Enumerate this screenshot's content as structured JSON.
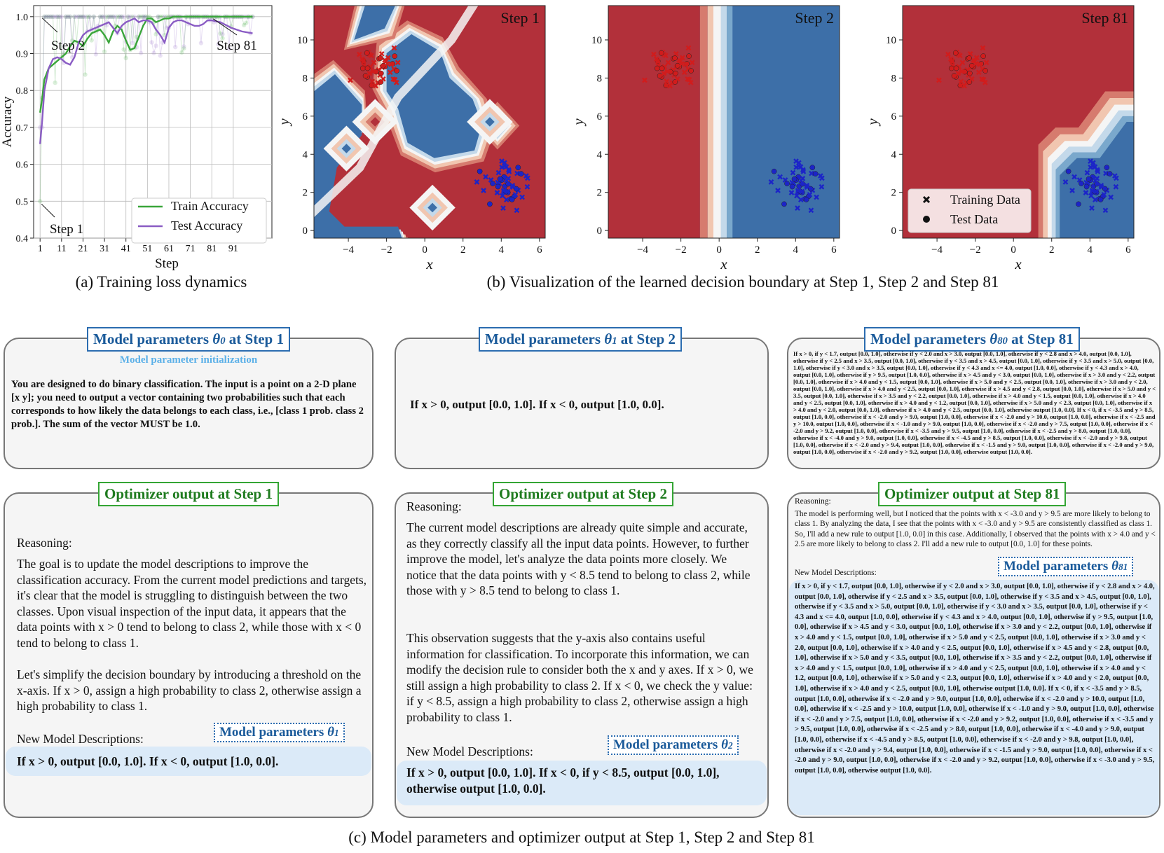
{
  "chart_data": [
    {
      "type": "line",
      "xlabel": "Step",
      "ylabel": "Accuracy",
      "xticks": [
        "1",
        "11",
        "21",
        "31",
        "41",
        "51",
        "61",
        "71",
        "81",
        "91"
      ],
      "yticks": [
        "0.4",
        "0.5",
        "0.6",
        "0.7",
        "0.8",
        "0.9",
        "1.0"
      ],
      "xlim": [
        -2,
        109
      ],
      "ylim": [
        0.4,
        1.03
      ],
      "grid": true,
      "legend_position": "bottom-right",
      "series": [
        {
          "name": "Train Accuracy",
          "color": "#3aa63a",
          "x": [
            1,
            2,
            3,
            5,
            7,
            9,
            11,
            13,
            15,
            17,
            19,
            21,
            23,
            25,
            27,
            29,
            31,
            33,
            35,
            37,
            39,
            41,
            43,
            45,
            47,
            49,
            51,
            53,
            55,
            57,
            59,
            61,
            63,
            65,
            67,
            69,
            71,
            73,
            75,
            77,
            79,
            81,
            85,
            90,
            95,
            100
          ],
          "y": [
            0.74,
            0.78,
            0.83,
            0.86,
            0.87,
            0.88,
            0.89,
            0.9,
            0.92,
            0.935,
            0.93,
            0.92,
            0.94,
            0.955,
            0.96,
            0.965,
            0.95,
            0.93,
            0.96,
            0.975,
            0.965,
            0.935,
            0.91,
            0.915,
            0.945,
            0.975,
            0.995,
            0.995,
            0.985,
            0.99,
            0.995,
            0.995,
            1.0,
            1.0,
            1.0,
            1.0,
            1.0,
            1.0,
            1.0,
            1.0,
            1.0,
            1.0,
            1.0,
            1.0,
            1.0,
            1.0
          ]
        },
        {
          "name": "Test Accuracy",
          "color": "#8a5cc4",
          "x": [
            1,
            2,
            3,
            5,
            7,
            9,
            11,
            13,
            15,
            17,
            19,
            21,
            23,
            25,
            27,
            29,
            31,
            33,
            35,
            37,
            39,
            41,
            43,
            45,
            47,
            49,
            51,
            53,
            55,
            57,
            59,
            61,
            63,
            65,
            67,
            69,
            71,
            73,
            75,
            77,
            79,
            81,
            85,
            90,
            95,
            100
          ],
          "y": [
            0.655,
            0.72,
            0.8,
            0.86,
            0.885,
            0.89,
            0.885,
            0.875,
            0.87,
            0.89,
            0.93,
            0.95,
            0.96,
            0.965,
            0.97,
            0.975,
            0.98,
            0.985,
            0.97,
            0.955,
            0.975,
            0.985,
            0.99,
            0.995,
            0.985,
            0.99,
            0.99,
            0.985,
            0.965,
            0.95,
            0.93,
            0.97,
            0.985,
            0.99,
            0.99,
            0.985,
            0.98,
            0.975,
            0.975,
            0.98,
            0.99,
            0.99,
            0.985,
            0.97,
            0.96,
            0.955
          ]
        }
      ],
      "annotations": [
        "Step 1",
        "Step 2",
        "Step 81"
      ]
    },
    {
      "type": "scatter",
      "title": "Step 1",
      "xlabel": "x",
      "ylabel": "y",
      "xlim": [
        -5.8,
        6.3
      ],
      "ylim": [
        -0.4,
        11.8
      ],
      "xticks": [
        "−4",
        "−2",
        "0",
        "2",
        "4",
        "6"
      ],
      "yticks": [
        "0",
        "2",
        "4",
        "6",
        "8",
        "10"
      ],
      "boundary": "grid-like patchwork of red and blue regions with white transition bands"
    },
    {
      "type": "scatter",
      "title": "Step 2",
      "xlabel": "x",
      "ylabel": "y",
      "xlim": [
        -5.8,
        6.3
      ],
      "ylim": [
        -0.4,
        11.8
      ],
      "xticks": [
        "−4",
        "−2",
        "0",
        "2",
        "4",
        "6"
      ],
      "yticks": [
        "0",
        "2",
        "4",
        "6",
        "8",
        "10"
      ],
      "boundary": "vertical split at x = 0: red for x < 0, blue for x > 0"
    },
    {
      "type": "scatter",
      "title": "Step 81",
      "xlabel": "x",
      "ylabel": "y",
      "xlim": [
        -5.8,
        6.3
      ],
      "ylim": [
        -0.4,
        11.8
      ],
      "xticks": [
        "−4",
        "−2",
        "0",
        "2",
        "4",
        "6"
      ],
      "yticks": [
        "0",
        "2",
        "4",
        "6",
        "8",
        "10"
      ],
      "legend": [
        "Training Data",
        "Test Data"
      ],
      "legend_position": "bottom-left",
      "boundary": "red everywhere except a blue region in the lower right bounded by a staircase near y ≈ 5–8",
      "clusters": [
        {
          "label": "class 1",
          "color": "#d11c1c",
          "center": [
            -2.5,
            8.7
          ],
          "spread": [
            0.9,
            0.9
          ]
        },
        {
          "label": "class 2",
          "color": "#1c24c8",
          "center": [
            4.2,
            2.3
          ],
          "spread": [
            0.9,
            0.9
          ]
        }
      ]
    }
  ],
  "captions": {
    "a": "(a) Training loss dynamics",
    "b": "(b) Visualization of the learned decision boundary at Step 1, Step 2 and Step 81",
    "c": "(c) Model parameters and optimizer output at Step 1, Step 2 and Step 81"
  },
  "boxes": {
    "param1": {
      "title_main": "Model parameters ",
      "title_theta": "θ",
      "title_sub": "0",
      "title_end": " at Step 1",
      "subtitle": "Model parameter initialization",
      "text": "You are designed to do binary classification. The input is a point on a 2-D plane [x y]; you need to output a vector containing two probabilities such that each corresponds to how likely the data belongs to each class, i.e., [class 1 prob. class 2 prob.]. The sum of the vector MUST be 1.0."
    },
    "param2": {
      "title_main": "Model parameters ",
      "title_theta": "θ",
      "title_sub": "1",
      "title_end": " at Step 2",
      "text": "If x > 0, output [0.0, 1.0]. If x < 0, output [1.0, 0.0]."
    },
    "param81": {
      "title_main": "Model parameters ",
      "title_theta": "θ",
      "title_sub": "80",
      "title_end": " at Step 81",
      "text": "If x > 0, if y < 1.7, output [0.0, 1.0], otherwise if y < 2.0 and x > 3.0, output [0.0, 1.0], otherwise if y < 2.8 and x > 4.0, output [0.0, 1.0], otherwise if y < 2.5 and x > 3.5, output [0.0, 1.0], otherwise if y < 3.5 and x > 4.5, output [0.0, 1.0], otherwise if y < 3.5 and x > 5.0, output [0.0, 1.0], otherwise if y < 3.0 and x > 3.5, output [0.0, 1.0], otherwise if y < 4.3 and x <= 4.0, output [1.0, 0.0], otherwise if y < 4.3 and x > 4.0, output [0.0, 1.0], otherwise if y > 9.5, output [1.0, 0.0], otherwise if x > 4.5 and y < 3.0, output [0.0, 1.0], otherwise if x > 3.0 and y < 2.2, output [0.0, 1.0], otherwise if x > 4.0 and y < 1.5, output [0.0, 1.0], otherwise if x > 5.0 and y < 2.5, output [0.0, 1.0], otherwise if x > 3.0 and y < 2.0, output [0.0, 1.0], otherwise if x > 4.0 and y < 2.5, output [0.0, 1.0], otherwise if x > 4.5 and y < 2.8, output [0.0, 1.0], otherwise if x > 5.0 and y < 3.5, output [0.0, 1.0], otherwise if x > 3.5 and y < 2.2, output [0.0, 1.0], otherwise if x > 4.0 and y < 1.5, output [0.0, 1.0], otherwise if x > 4.0 and y < 2.5, output [0.0, 1.0], otherwise if x > 4.0 and y < 1.2, output [0.0, 1.0], otherwise if x > 5.0 and y < 2.3, output [0.0, 1.0], otherwise if x > 4.0 and y < 2.0, output [0.0, 1.0], otherwise if x > 4.0 and y < 2.5, output [0.0, 1.0], otherwise output [1.0, 0.0]. If x < 0, if x < -3.5 and y > 8.5, output [1.0, 0.0], otherwise if x < -2.0 and y > 9.0, output [1.0, 0.0], otherwise if x < -2.0 and y > 10.0, output [1.0, 0.0], otherwise if x < -2.5 and y > 10.0, output [1.0, 0.0], otherwise if x < -1.0 and y > 9.0, output [1.0, 0.0], otherwise if x < -2.0 and y > 7.5, output [1.0, 0.0], otherwise if x < -2.0 and y > 9.2, output [1.0, 0.0], otherwise if x < -3.5 and y > 9.5, output [1.0, 0.0], otherwise if x < -2.5 and y > 8.0, output [1.0, 0.0], otherwise if x < -4.0 and y > 9.0, output [1.0, 0.0], otherwise if x < -4.5 and y > 8.5, output [1.0, 0.0], otherwise if x < -2.0 and y > 9.8, output [1.0, 0.0], otherwise if x < -2.0 and y > 9.4, output [1.0, 0.0], otherwise if x < -1.5 and y > 9.0, output [1.0, 0.0], otherwise if x < -2.0 and y > 9.0, output [1.0, 0.0], otherwise if x < -2.0 and y > 9.2, output [1.0, 0.0], otherwise output [1.0, 0.0]."
    },
    "opt1": {
      "title": "Optimizer output at Step 1",
      "reasoning_label": "Reasoning:",
      "para1": "The goal is to update the model descriptions to improve the classification accuracy. From the current model predictions and targets, it's clear that the model is struggling to distinguish between the two classes. Upon visual inspection of the input data, it appears that the data points with x > 0 tend to belong to class 2, while those with x < 0 tend to belong to class 1.",
      "para2": "Let's simplify the decision boundary by introducing a threshold on the x-axis. If x > 0, assign a high probability to class 2, otherwise assign a high probability to class 1.",
      "new_label": "New Model Descriptions:",
      "tag_main": "Model parameters ",
      "tag_theta": "θ",
      "tag_sub": "1",
      "new_text": "If x > 0, output [0.0, 1.0]. If x < 0, output [1.0, 0.0]."
    },
    "opt2": {
      "title": "Optimizer output at Step 2",
      "reasoning_label": "Reasoning:",
      "para1": "The current model descriptions are already quite simple and accurate, as they correctly classify all the input data points. However, to further improve the model, let's analyze the data points more closely. We notice that the data points with y < 8.5 tend to belong to class 2, while those with y > 8.5 tend to belong to class 1.",
      "para2": "This observation suggests that the y-axis also contains useful information for classification. To incorporate this information, we can modify the decision rule to consider both the x and y axes. If x > 0, we still assign a high probability to class 2. If x < 0, we check the y value: if y < 8.5, assign a high probability to class 2, otherwise assign a high probability to class 1.",
      "new_label": "New Model Descriptions:",
      "tag_main": "Model parameters ",
      "tag_theta": "θ",
      "tag_sub": "2",
      "new_text": "If x > 0, output [0.0, 1.0]. If x < 0, if y < 8.5, output [0.0, 1.0], otherwise output [1.0, 0.0]."
    },
    "opt81": {
      "title": "Optimizer output at Step 81",
      "reasoning_label": "Reasoning:",
      "para1": "The model is performing well, but I noticed that the points with x < -3.0 and y > 9.5 are more likely to belong to class 1. By analyzing the data, I see that the points with x < -3.0 and y > 9.5 are consistently classified as class 1. So, I'll add a new rule to output [1.0, 0.0] in this case. Additionally, I observed that the points with x > 4.0 and y < 2.5 are more likely to belong to class 2. I'll add a new rule to output [0.0, 1.0] for these points.",
      "new_label": "New Model Descriptions:",
      "tag_main": "Model parameters ",
      "tag_theta": "θ",
      "tag_sub": "81",
      "new_text": "If x > 0, if y < 1.7, output [0.0, 1.0], otherwise if y < 2.0 and x > 3.0, output [0.0, 1.0], otherwise if y < 2.8 and x > 4.0, output [0.0, 1.0], otherwise if y < 2.5 and x > 3.5, output [0.0, 1.0], otherwise if y < 3.5 and x > 4.5, output [0.0, 1.0], otherwise if y < 3.5 and x > 5.0, output [0.0, 1.0], otherwise if y < 3.0 and x > 3.5, output [0.0, 1.0], otherwise if y < 4.3 and x <= 4.0, output [1.0, 0.0], otherwise if y < 4.3 and x > 4.0, output [0.0, 1.0], otherwise if y > 9.5, output [1.0, 0.0], otherwise if x > 4.5 and y < 3.0, output [0.0, 1.0], otherwise if x > 3.0 and y < 2.2, output [0.0, 1.0], otherwise if x > 4.0 and y < 1.5, output [0.0, 1.0], otherwise if x > 5.0 and y < 2.5, output [0.0, 1.0], otherwise if x > 3.0 and y < 2.0, output [0.0, 1.0], otherwise if x > 4.0 and y < 2.5, output [0.0, 1.0], otherwise if x > 4.5 and y < 2.8, output [0.0, 1.0], otherwise if x > 5.0 and y < 3.5, output [0.0, 1.0], otherwise if x > 3.5 and y < 2.2, output [0.0, 1.0], otherwise if x > 4.0 and y < 1.5, output [0.0, 1.0], otherwise if x > 4.0 and y < 2.5, output [0.0, 1.0], otherwise if x > 4.0 and y < 1.2, output [0.0, 1.0], otherwise if x > 5.0 and y < 2.3, output [0.0, 1.0], otherwise if x > 4.0 and y < 2.0, output [0.0, 1.0], otherwise if x > 4.0 and y < 2.5, output [0.0, 1.0], otherwise output [1.0, 0.0]. If x < 0, if x < -3.5 and y > 8.5, output [1.0, 0.0], otherwise if x < -2.0 and y > 9.0, output [1.0, 0.0], otherwise if x < -2.0 and y > 10.0, output [1.0, 0.0], otherwise if x < -2.5 and y > 10.0, output [1.0, 0.0], otherwise if x < -1.0 and y > 9.0, output [1.0, 0.0], otherwise if x < -2.0 and y > 7.5, output [1.0, 0.0], otherwise if x < -2.0 and y > 9.2, output [1.0, 0.0], otherwise if x < -3.5 and y > 9.5, output [1.0, 0.0], otherwise if x < -2.5 and y > 8.0, output [1.0, 0.0], otherwise if x < -4.0 and y > 9.0, output [1.0, 0.0], otherwise if x < -4.5 and y > 8.5, output [1.0, 0.0], otherwise if x < -2.0 and y > 9.8, output [1.0, 0.0], otherwise if x < -2.0 and y > 9.4, output [1.0, 0.0], otherwise if x < -1.5 and y > 9.0, output [1.0, 0.0], otherwise if x < -2.0 and y > 9.0, output [1.0, 0.0], otherwise if x < -2.0 and y > 9.2, output [1.0, 0.0], otherwise if x < -3.0 and y > 9.5, output [1.0, 0.0], otherwise output [1.0, 0.0]."
    }
  }
}
